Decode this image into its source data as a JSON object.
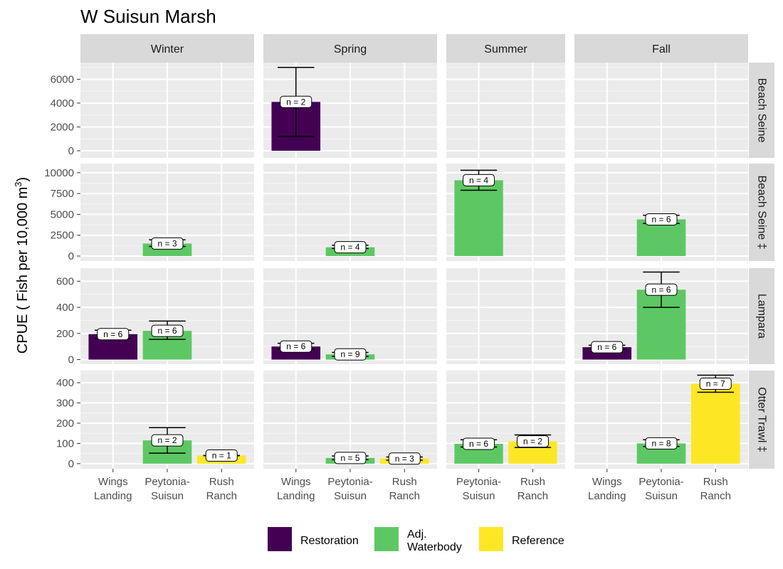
{
  "chart_data": {
    "type": "bar",
    "title": "W Suisun Marsh",
    "ylabel_main": "CPUE ( Fish per 10,000 m",
    "ylabel_sup": "3",
    "ylabel_end": ")",
    "seasons": [
      {
        "key": "winter",
        "label": "Winter",
        "sites": [
          "Wings Landing",
          "Peytonia-Suisun",
          "Rush Ranch"
        ]
      },
      {
        "key": "spring",
        "label": "Spring",
        "sites": [
          "Wings Landing",
          "Peytonia-Suisun",
          "Rush Ranch"
        ]
      },
      {
        "key": "summer",
        "label": "Summer",
        "sites": [
          "Peytonia-Suisun",
          "Rush Ranch"
        ]
      },
      {
        "key": "fall",
        "label": "Fall",
        "sites": [
          "Wings Landing",
          "Peytonia-Suisun",
          "Rush Ranch"
        ]
      }
    ],
    "site_tick_labels": {
      "Wings Landing": [
        "Wings",
        "Landing"
      ],
      "Peytonia-Suisun": [
        "Peytonia-",
        "Suisun"
      ],
      "Rush Ranch": [
        "Rush",
        "Ranch"
      ]
    },
    "methods": [
      {
        "key": "beach_seine",
        "label": "Beach Seine",
        "ylim": [
          -600,
          7400
        ],
        "ticks": [
          0,
          2000,
          4000,
          6000
        ]
      },
      {
        "key": "beach_seine_dd",
        "label": "Beach Seine ‡",
        "ylim": [
          -600,
          11100
        ],
        "ticks": [
          0,
          2500,
          5000,
          7500,
          10000
        ]
      },
      {
        "key": "lampara",
        "label": "Lampara",
        "ylim": [
          -35,
          700
        ],
        "ticks": [
          0,
          200,
          400,
          600
        ]
      },
      {
        "key": "otter_trawl",
        "label": "Otter Trawl ‡",
        "ylim": [
          -25,
          460
        ],
        "ticks": [
          0,
          100,
          200,
          300,
          400
        ]
      }
    ],
    "habitat_of_site": {
      "Wings Landing": "Restoration",
      "Peytonia-Suisun": "Adj. Waterbody",
      "Rush Ranch": "Reference"
    },
    "habitats": [
      {
        "name": "Restoration",
        "label_lines": [
          "Restoration"
        ],
        "color": "#440154"
      },
      {
        "name": "Adj. Waterbody",
        "label_lines": [
          "Adj.",
          "Waterbody"
        ],
        "color": "#5DC863"
      },
      {
        "name": "Reference",
        "label_lines": [
          "Reference"
        ],
        "color": "#FDE725"
      }
    ],
    "bars": [
      {
        "method": "beach_seine",
        "season": "spring",
        "site": "Wings Landing",
        "value": 4100,
        "err_low": 1200,
        "err_high": 7000,
        "n": "n = 2"
      },
      {
        "method": "beach_seine_dd",
        "season": "winter",
        "site": "Peytonia-Suisun",
        "value": 1500,
        "err_low": 1150,
        "err_high": 1950,
        "n": "n = 3"
      },
      {
        "method": "beach_seine_dd",
        "season": "spring",
        "site": "Peytonia-Suisun",
        "value": 1050,
        "err_low": 900,
        "err_high": 1300,
        "n": "n = 4"
      },
      {
        "method": "beach_seine_dd",
        "season": "summer",
        "site": "Peytonia-Suisun",
        "value": 9100,
        "err_low": 7900,
        "err_high": 10300,
        "n": "n = 4"
      },
      {
        "method": "beach_seine_dd",
        "season": "fall",
        "site": "Peytonia-Suisun",
        "value": 4400,
        "err_low": 3900,
        "err_high": 4900,
        "n": "n = 6"
      },
      {
        "method": "lampara",
        "season": "winter",
        "site": "Wings Landing",
        "value": 195,
        "err_low": 160,
        "err_high": 225,
        "n": "n = 6"
      },
      {
        "method": "lampara",
        "season": "winter",
        "site": "Peytonia-Suisun",
        "value": 220,
        "err_low": 155,
        "err_high": 295,
        "n": "n = 6"
      },
      {
        "method": "lampara",
        "season": "spring",
        "site": "Wings Landing",
        "value": 100,
        "err_low": 80,
        "err_high": 125,
        "n": "n = 6"
      },
      {
        "method": "lampara",
        "season": "spring",
        "site": "Peytonia-Suisun",
        "value": 40,
        "err_low": 25,
        "err_high": 55,
        "n": "n = 9"
      },
      {
        "method": "lampara",
        "season": "fall",
        "site": "Wings Landing",
        "value": 95,
        "err_low": 80,
        "err_high": 110,
        "n": "n = 6"
      },
      {
        "method": "lampara",
        "season": "fall",
        "site": "Peytonia-Suisun",
        "value": 535,
        "err_low": 400,
        "err_high": 670,
        "n": "n = 6"
      },
      {
        "method": "otter_trawl",
        "season": "winter",
        "site": "Peytonia-Suisun",
        "value": 115,
        "err_low": 52,
        "err_high": 178,
        "n": "n = 2"
      },
      {
        "method": "otter_trawl",
        "season": "winter",
        "site": "Rush Ranch",
        "value": 40,
        "err_low": 40,
        "err_high": 40,
        "n": "n = 1"
      },
      {
        "method": "otter_trawl",
        "season": "spring",
        "site": "Peytonia-Suisun",
        "value": 28,
        "err_low": 20,
        "err_high": 38,
        "n": "n = 5"
      },
      {
        "method": "otter_trawl",
        "season": "spring",
        "site": "Rush Ranch",
        "value": 25,
        "err_low": 17,
        "err_high": 33,
        "n": "n = 3"
      },
      {
        "method": "otter_trawl",
        "season": "summer",
        "site": "Peytonia-Suisun",
        "value": 98,
        "err_low": 82,
        "err_high": 118,
        "n": "n = 6"
      },
      {
        "method": "otter_trawl",
        "season": "summer",
        "site": "Rush Ranch",
        "value": 110,
        "err_low": 80,
        "err_high": 142,
        "n": "n = 2"
      },
      {
        "method": "otter_trawl",
        "season": "fall",
        "site": "Peytonia-Suisun",
        "value": 100,
        "err_low": 85,
        "err_high": 118,
        "n": "n = 8"
      },
      {
        "method": "otter_trawl",
        "season": "fall",
        "site": "Rush Ranch",
        "value": 395,
        "err_low": 353,
        "err_high": 437,
        "n": "n = 7"
      }
    ],
    "grid": true,
    "legend_position": "bottom"
  }
}
